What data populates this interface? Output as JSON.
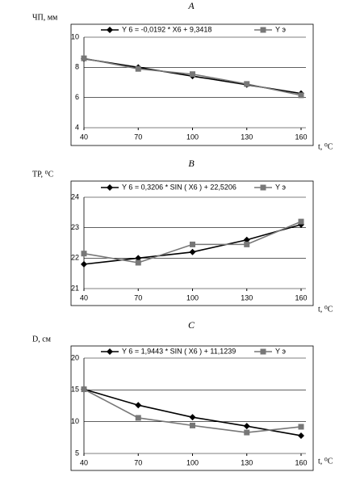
{
  "chart_data": [
    {
      "type": "line",
      "title": "A",
      "y_label": "ЧП, мм",
      "x_label": "t, ⁰C",
      "x": [
        40,
        70,
        100,
        130,
        160
      ],
      "xlim": [
        40,
        160
      ],
      "xticks": [
        40,
        70,
        100,
        130,
        160
      ],
      "ylim": [
        4,
        10
      ],
      "yticks": [
        4,
        6,
        8,
        10
      ],
      "grid": true,
      "series": [
        {
          "name": "Y 6 = -0,0192 * X6 + 9,3418",
          "color": "#000000",
          "marker": "diamond",
          "values": [
            8.57,
            8.0,
            7.42,
            6.85,
            6.27
          ]
        },
        {
          "name": "Y э",
          "color": "#777777",
          "marker": "square",
          "values": [
            8.6,
            7.9,
            7.55,
            6.9,
            6.15
          ]
        }
      ]
    },
    {
      "type": "line",
      "title": "B",
      "y_label": "TP, ⁰C",
      "x_label": "t, ⁰C",
      "x": [
        40,
        70,
        100,
        130,
        160
      ],
      "xlim": [
        40,
        160
      ],
      "xticks": [
        40,
        70,
        100,
        130,
        160
      ],
      "ylim": [
        21,
        24
      ],
      "yticks": [
        21,
        22,
        23,
        24
      ],
      "grid": true,
      "series": [
        {
          "name": "Y 6 = 0,3206 * SIN ( X6 ) + 22,5206",
          "color": "#000000",
          "marker": "diamond",
          "values": [
            21.8,
            22.0,
            22.2,
            22.6,
            23.1
          ]
        },
        {
          "name": "Y э",
          "color": "#777777",
          "marker": "square",
          "values": [
            22.15,
            21.85,
            22.45,
            22.45,
            23.2
          ]
        }
      ]
    },
    {
      "type": "line",
      "title": "C",
      "y_label": "D, см",
      "x_label": "t, ⁰C",
      "x": [
        40,
        70,
        100,
        130,
        160
      ],
      "xlim": [
        40,
        160
      ],
      "xticks": [
        40,
        70,
        100,
        130,
        160
      ],
      "ylim": [
        5,
        20
      ],
      "yticks": [
        5,
        10,
        15,
        20
      ],
      "grid": true,
      "series": [
        {
          "name": "Y 6 = 1,9443 * SIN ( X6 ) + 11,1239",
          "color": "#000000",
          "marker": "diamond",
          "values": [
            15.1,
            12.6,
            10.7,
            9.3,
            7.8
          ]
        },
        {
          "name": "Y э",
          "color": "#777777",
          "marker": "square",
          "values": [
            15.1,
            10.6,
            9.4,
            8.3,
            9.2
          ]
        }
      ]
    }
  ]
}
